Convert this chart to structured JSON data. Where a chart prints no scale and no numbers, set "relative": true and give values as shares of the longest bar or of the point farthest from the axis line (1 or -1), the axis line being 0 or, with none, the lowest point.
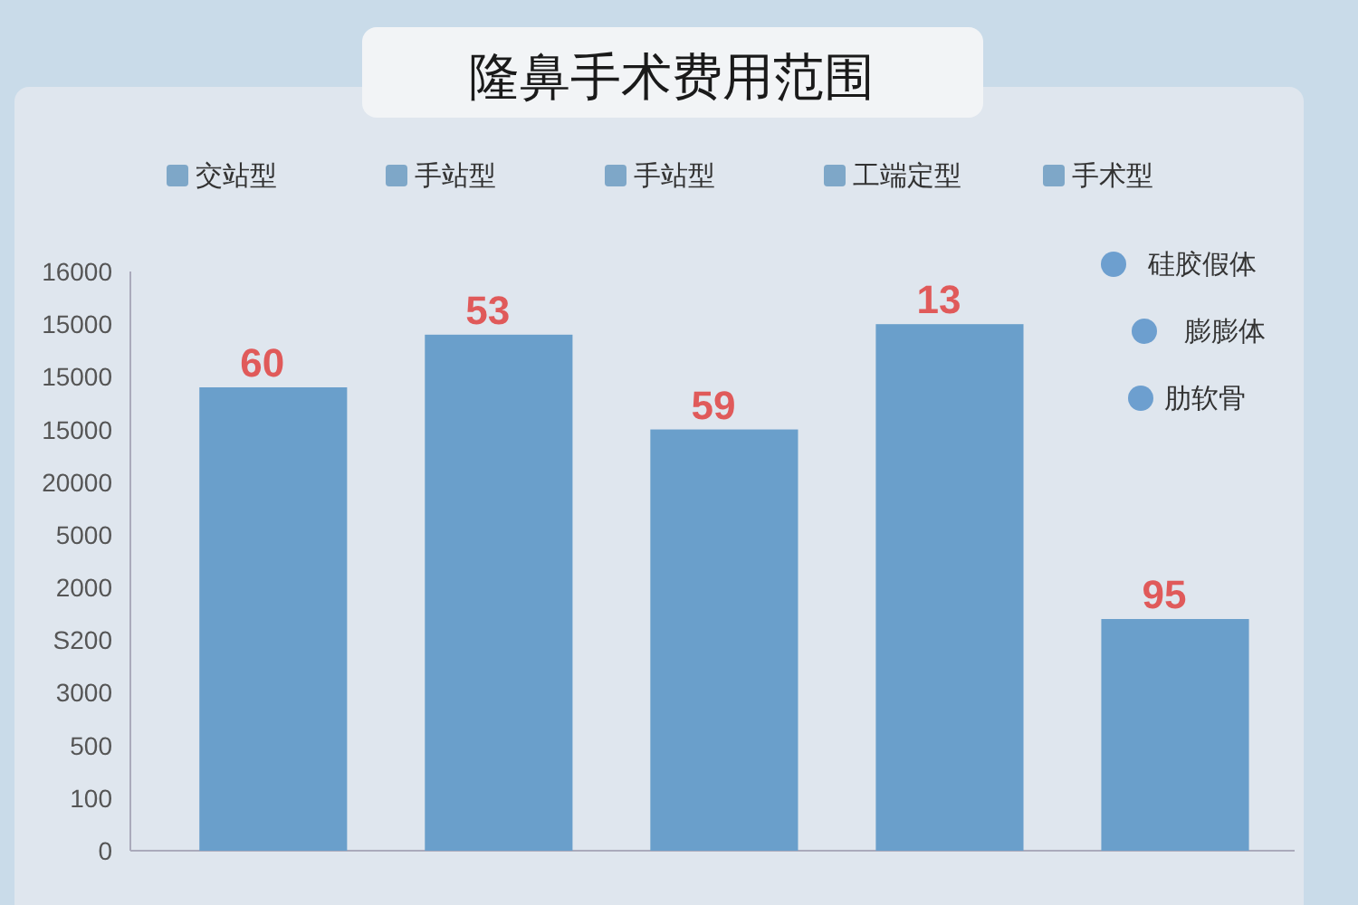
{
  "chart_data": {
    "type": "bar",
    "title": "隆鼻手术费用范围",
    "categories": [
      null,
      null,
      null,
      null,
      null
    ],
    "series": [
      {
        "color": "#6a9fcb",
        "values": [
          0.88,
          0.98,
          0.8,
          1,
          0.44
        ]
      }
    ],
    "relative": true,
    "annotations": [
      "60",
      "53",
      "59",
      "13",
      "95",
      "16000",
      "15000",
      "15000",
      "15000",
      "20000",
      "5000",
      "2000",
      "S200",
      "3000",
      "500",
      "100",
      "0",
      "交站型",
      "手站型",
      "手站型",
      "工端定型",
      "手术型",
      "硅胶假体",
      "膨膨体",
      "肋软骨"
    ]
  }
}
